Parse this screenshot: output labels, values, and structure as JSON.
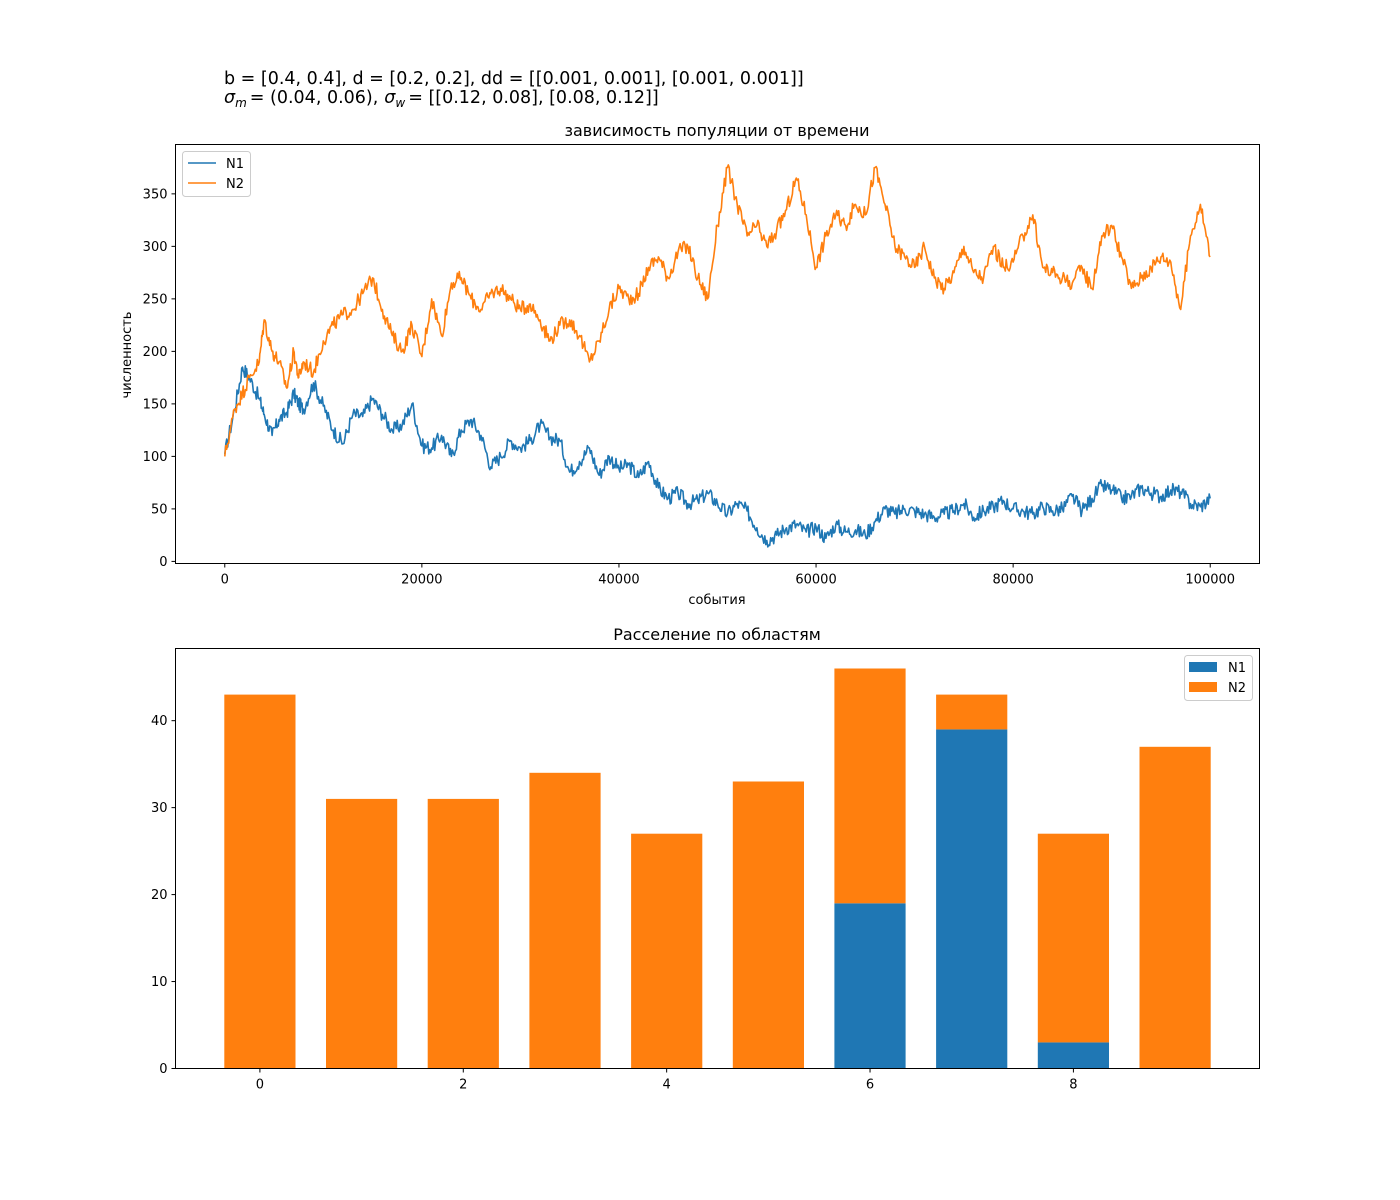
{
  "suptitle": {
    "line1": "b = [0.4, 0.4], d = [0.2, 0.2], dd = [[0.001, 0.001], [0.001, 0.001]]",
    "line2_sigma_m_sub": "m",
    "line2_sigma_m_val": "= (0.04, 0.06),",
    "line2_sigma_w_sub": "w",
    "line2_sigma_w_val": "= [[0.12, 0.08], [0.08, 0.12]]"
  },
  "colors": {
    "N1": "#1f77b4",
    "N2": "#ff7f0e"
  },
  "chart_data": [
    {
      "type": "line",
      "title": "зависимость популяции от времени",
      "xlabel": "события",
      "ylabel": "численность",
      "xlim": [
        -5000,
        105000
      ],
      "ylim": [
        -2,
        397
      ],
      "xticks": [
        0,
        20000,
        40000,
        60000,
        80000,
        100000
      ],
      "yticks": [
        0,
        50,
        100,
        150,
        200,
        250,
        300,
        350
      ],
      "legend_position": "upper left",
      "grid": false,
      "series": [
        {
          "name": "N1",
          "color": "#1f77b4",
          "x": [
            0,
            1000,
            1800,
            2500,
            3500,
            4000,
            4800,
            5500,
            6300,
            7000,
            7500,
            8000,
            9000,
            10000,
            11000,
            12000,
            13000,
            14000,
            15000,
            16000,
            17000,
            18000,
            19000,
            20000,
            21000,
            22000,
            23000,
            24000,
            25000,
            26000,
            27000,
            28000,
            29000,
            30000,
            31000,
            32000,
            33000,
            34000,
            35000,
            36000,
            37000,
            38000,
            39000,
            40000,
            41000,
            42000,
            43000,
            44000,
            45000,
            46000,
            47000,
            48000,
            49000,
            50000,
            51000,
            52000,
            53000,
            54000,
            55000,
            56000,
            57000,
            58000,
            59000,
            60000,
            61000,
            62000,
            63000,
            64000,
            65000,
            66000,
            67000,
            68000,
            69000,
            70000,
            71000,
            72000,
            73000,
            74000,
            75000,
            76000,
            77000,
            78000,
            79000,
            80000,
            81000,
            82000,
            83000,
            84000,
            85000,
            86000,
            87000,
            88000,
            89000,
            90000,
            91000,
            92000,
            93000,
            94000,
            95000,
            96000,
            97000,
            98000,
            99000,
            100000
          ],
          "y": [
            102,
            145,
            185,
            175,
            155,
            140,
            120,
            135,
            142,
            160,
            150,
            145,
            170,
            148,
            125,
            112,
            140,
            138,
            155,
            140,
            125,
            130,
            150,
            110,
            108,
            120,
            100,
            125,
            135,
            120,
            90,
            100,
            115,
            108,
            115,
            130,
            118,
            115,
            85,
            95,
            108,
            82,
            100,
            88,
            92,
            80,
            95,
            70,
            60,
            65,
            55,
            58,
            65,
            55,
            45,
            55,
            48,
            32,
            20,
            25,
            32,
            35,
            28,
            33,
            22,
            35,
            28,
            30,
            25,
            38,
            50,
            45,
            50,
            48,
            45,
            42,
            45,
            48,
            55,
            42,
            48,
            52,
            58,
            50,
            48,
            45,
            52,
            48,
            50,
            62,
            48,
            60,
            72,
            68,
            60,
            62,
            70,
            65,
            62,
            68,
            66,
            55,
            52,
            60
          ]
        },
        {
          "name": "N2",
          "color": "#ff7f0e",
          "x": [
            0,
            1000,
            1800,
            2500,
            3500,
            4000,
            4800,
            5500,
            6300,
            7000,
            7500,
            8000,
            9000,
            10000,
            11000,
            12000,
            13000,
            14000,
            15000,
            16000,
            17000,
            18000,
            19000,
            20000,
            21000,
            22000,
            23000,
            24000,
            25000,
            26000,
            27000,
            28000,
            29000,
            30000,
            31000,
            32000,
            33000,
            34000,
            35000,
            36000,
            37000,
            38000,
            39000,
            40000,
            41000,
            42000,
            43000,
            44000,
            45000,
            46000,
            47000,
            48000,
            49000,
            50000,
            51000,
            52000,
            53000,
            54000,
            55000,
            56000,
            57000,
            58000,
            59000,
            60000,
            61000,
            62000,
            63000,
            64000,
            65000,
            66000,
            67000,
            68000,
            69000,
            70000,
            71000,
            72000,
            73000,
            74000,
            75000,
            76000,
            77000,
            78000,
            79000,
            80000,
            81000,
            82000,
            83000,
            84000,
            85000,
            86000,
            87000,
            88000,
            89000,
            90000,
            91000,
            92000,
            93000,
            94000,
            95000,
            96000,
            97000,
            98000,
            99000,
            100000
          ],
          "y": [
            100,
            145,
            160,
            175,
            190,
            230,
            200,
            190,
            165,
            200,
            175,
            190,
            180,
            210,
            225,
            235,
            240,
            255,
            270,
            240,
            215,
            200,
            225,
            195,
            250,
            215,
            265,
            270,
            250,
            240,
            255,
            260,
            250,
            240,
            245,
            230,
            210,
            225,
            230,
            215,
            190,
            210,
            240,
            260,
            250,
            255,
            280,
            290,
            270,
            295,
            300,
            270,
            250,
            320,
            375,
            340,
            310,
            320,
            300,
            315,
            335,
            365,
            330,
            280,
            310,
            330,
            320,
            340,
            330,
            375,
            340,
            300,
            290,
            280,
            300,
            270,
            260,
            275,
            300,
            275,
            270,
            300,
            280,
            285,
            310,
            330,
            280,
            275,
            270,
            265,
            280,
            260,
            310,
            320,
            290,
            260,
            270,
            280,
            290,
            285,
            240,
            310,
            340,
            290
          ]
        }
      ]
    },
    {
      "type": "bar",
      "stacked": true,
      "title": "Расселение по областям",
      "xlabel": "",
      "ylabel": "",
      "xlim": [
        -0.83,
        9.83
      ],
      "ylim": [
        0,
        48.3
      ],
      "xticks": [
        0,
        2,
        4,
        6,
        8
      ],
      "yticks": [
        0,
        10,
        20,
        30,
        40
      ],
      "legend_position": "upper right",
      "grid": false,
      "categories": [
        0,
        1,
        2,
        3,
        4,
        5,
        6,
        7,
        8,
        9
      ],
      "series": [
        {
          "name": "N1",
          "color": "#1f77b4",
          "values": [
            0,
            0,
            0,
            0,
            0,
            0,
            19,
            39,
            3,
            0
          ]
        },
        {
          "name": "N2",
          "color": "#ff7f0e",
          "values": [
            43,
            31,
            31,
            34,
            27,
            33,
            27,
            4,
            24,
            37
          ]
        }
      ]
    }
  ]
}
